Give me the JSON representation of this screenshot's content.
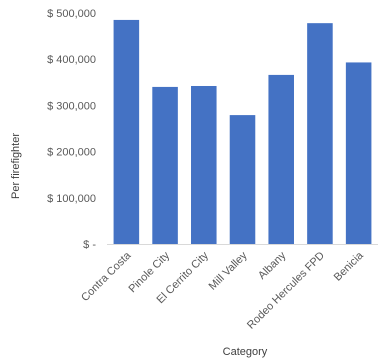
{
  "chart_data": {
    "type": "bar",
    "title": "",
    "xlabel": "Category",
    "ylabel": "Per firefighter",
    "categories": [
      "Contra Costa",
      "Pinole City",
      "El Cerrito City",
      "Mill Valley",
      "Albany",
      "Rodeo Hercules FPD",
      "Benicia"
    ],
    "values": [
      485000,
      340000,
      342000,
      279000,
      366000,
      478000,
      393000
    ],
    "ylim": [
      0,
      500000
    ],
    "ytick_values": [
      0,
      100000,
      200000,
      300000,
      400000,
      500000
    ],
    "ytick_labels": [
      "$ -",
      "$ 100,000",
      "$ 200,000",
      "$ 300,000",
      "$ 400,000",
      "$ 500,000"
    ],
    "grid": false,
    "legend": "none",
    "bar_color": "#4472C4"
  }
}
